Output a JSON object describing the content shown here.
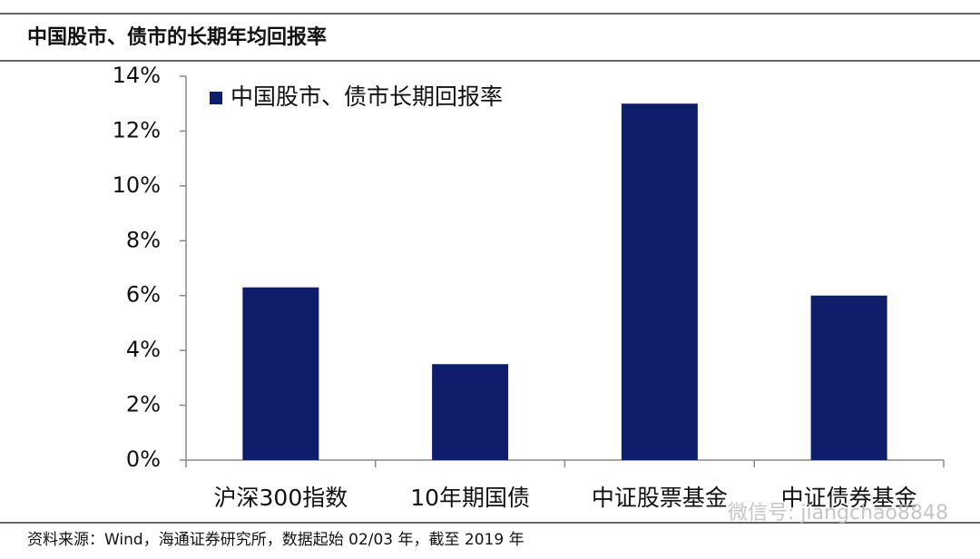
{
  "chart_data": {
    "type": "bar",
    "title": "中国股市、债市的长期年均回报率",
    "categories": [
      "沪深300指数",
      "10年期国债",
      "中证股票基金",
      "中证债券基金"
    ],
    "series": [
      {
        "name": "中国股市、债市长期回报率",
        "color": "#0f1e6a",
        "values": [
          6.3,
          3.5,
          13.0,
          6.0
        ]
      }
    ],
    "ylim": [
      0,
      14
    ],
    "yticks": [
      {
        "value": 0,
        "label": "0%"
      },
      {
        "value": 2,
        "label": "2%"
      },
      {
        "value": 4,
        "label": "4%"
      },
      {
        "value": 6,
        "label": "6%"
      },
      {
        "value": 8,
        "label": "8%"
      },
      {
        "value": 10,
        "label": "10%"
      },
      {
        "value": 12,
        "label": "12%"
      },
      {
        "value": 14,
        "label": "14%"
      }
    ],
    "legend": "upper-left",
    "source": "资料来源：Wind，海通证券研究所，数据起始 02/03 年，截至 2019 年",
    "watermark": "微信号: jiangchao8848"
  }
}
